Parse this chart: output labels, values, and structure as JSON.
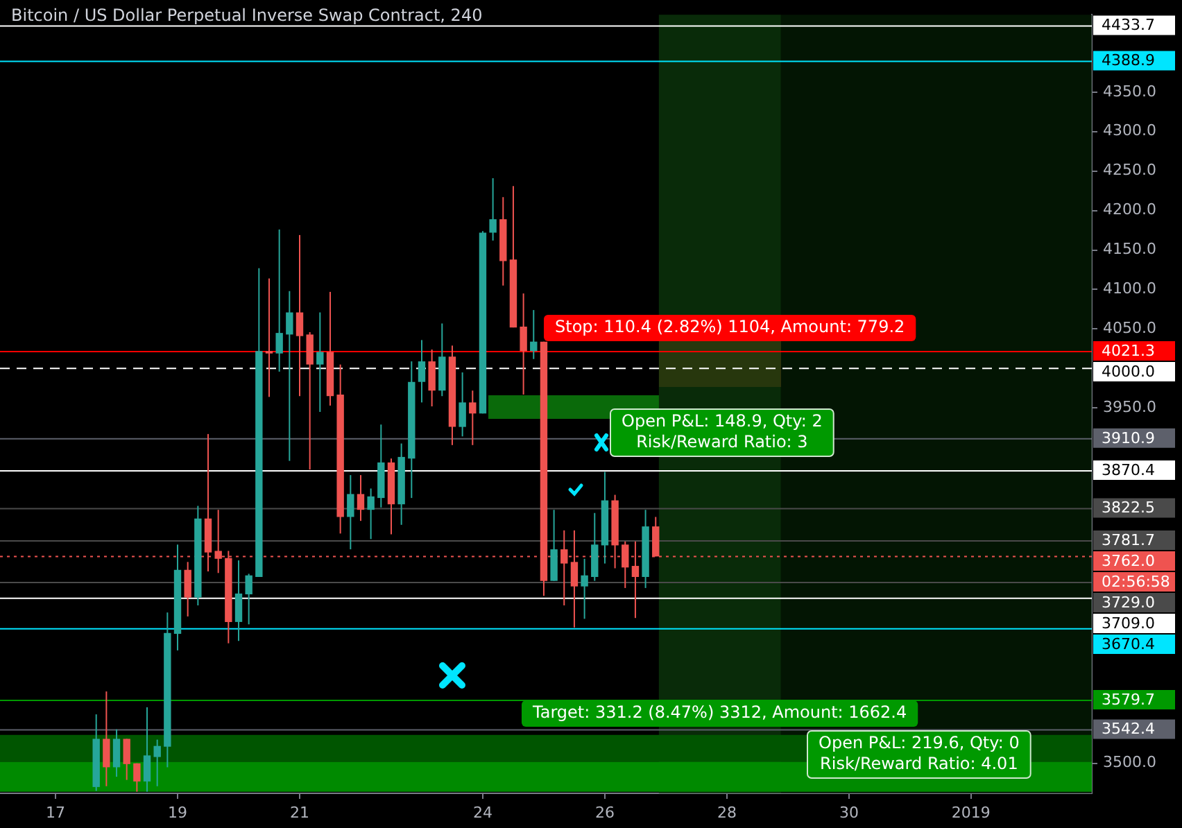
{
  "chart_data": {
    "type": "candlestick",
    "title": "Bitcoin / US Dollar Perpetual Inverse Swap Contract, 240",
    "xlim": [
      "2018-12-16T02:10",
      "2019-01-02T23:30"
    ],
    "ylim": [
      3462,
      4448
    ],
    "xticks": [
      {
        "value": "2018-12-17",
        "label": "17"
      },
      {
        "value": "2018-12-19",
        "label": "19"
      },
      {
        "value": "2018-12-21",
        "label": "21"
      },
      {
        "value": "2018-12-24",
        "label": "24"
      },
      {
        "value": "2018-12-26",
        "label": "26"
      },
      {
        "value": "2018-12-28",
        "label": "28"
      },
      {
        "value": "2018-12-30",
        "label": "30"
      },
      {
        "value": "2019-01-01",
        "label": "2019"
      }
    ],
    "yticks": [
      {
        "value": 3500,
        "label": "3500.0"
      },
      {
        "value": 3950,
        "label": "3950.0"
      },
      {
        "value": 4050,
        "label": "4050.0"
      },
      {
        "value": 4100,
        "label": "4100.0"
      },
      {
        "value": 4150,
        "label": "4150.0"
      },
      {
        "value": 4200,
        "label": "4200.0"
      },
      {
        "value": 4250,
        "label": "4250.0"
      },
      {
        "value": 4300,
        "label": "4300.0"
      },
      {
        "value": 4350,
        "label": "4350.0"
      }
    ],
    "series": [
      {
        "x": [
          "2018-12-17T16:00",
          "2018-12-17T20:00",
          "2018-12-18T00:00",
          "2018-12-18T04:00",
          "2018-12-18T08:00",
          "2018-12-18T12:00",
          "2018-12-18T16:00",
          "2018-12-18T20:00",
          "2018-12-19T00:00",
          "2018-12-19T04:00",
          "2018-12-19T08:00",
          "2018-12-19T12:00",
          "2018-12-19T16:00",
          "2018-12-19T20:00",
          "2018-12-20T00:00",
          "2018-12-20T04:00",
          "2018-12-20T08:00",
          "2018-12-20T12:00",
          "2018-12-20T16:00",
          "2018-12-20T20:00",
          "2018-12-21T00:00",
          "2018-12-21T04:00",
          "2018-12-21T08:00",
          "2018-12-21T12:00",
          "2018-12-21T16:00",
          "2018-12-21T20:00",
          "2018-12-22T00:00",
          "2018-12-22T04:00",
          "2018-12-22T08:00",
          "2018-12-22T12:00",
          "2018-12-22T16:00",
          "2018-12-22T20:00",
          "2018-12-23T00:00",
          "2018-12-23T04:00",
          "2018-12-23T08:00",
          "2018-12-23T12:00",
          "2018-12-23T16:00",
          "2018-12-23T20:00",
          "2018-12-24T00:00",
          "2018-12-24T04:00",
          "2018-12-24T08:00",
          "2018-12-24T12:00",
          "2018-12-24T16:00",
          "2018-12-24T20:00",
          "2018-12-25T00:00",
          "2018-12-25T04:00",
          "2018-12-25T08:00",
          "2018-12-25T12:00",
          "2018-12-25T16:00",
          "2018-12-25T20:00",
          "2018-12-26T00:00",
          "2018-12-26T04:00",
          "2018-12-26T08:00",
          "2018-12-26T12:00",
          "2018-12-26T16:00",
          "2018-12-26T20:00"
        ],
        "ohlc": [
          [
            3470,
            3562,
            3465,
            3531
          ],
          [
            3531,
            3591,
            3471,
            3495
          ],
          [
            3495,
            3543,
            3483,
            3531
          ],
          [
            3531,
            3531,
            3479,
            3499
          ],
          [
            3500,
            3500,
            3464,
            3477
          ],
          [
            3477,
            3571,
            3464,
            3510
          ],
          [
            3508,
            3530,
            3471,
            3522
          ],
          [
            3521,
            3691,
            3495,
            3665
          ],
          [
            3664,
            3777,
            3643,
            3745
          ],
          [
            3745,
            3755,
            3686,
            3710
          ],
          [
            3710,
            3826,
            3700,
            3810
          ],
          [
            3810,
            3917,
            3743,
            3767
          ],
          [
            3769,
            3821,
            3741,
            3759
          ],
          [
            3760,
            3769,
            3652,
            3679
          ],
          [
            3679,
            3757,
            3655,
            3715
          ],
          [
            3714,
            3740,
            3676,
            3738
          ],
          [
            3736,
            4127,
            3736,
            4022
          ],
          [
            4022,
            4114,
            3964,
            4019
          ],
          [
            4019,
            4176,
            3996,
            4045
          ],
          [
            4043,
            4098,
            3883,
            4071
          ],
          [
            4071,
            4169,
            3965,
            4041
          ],
          [
            4043,
            4046,
            3872,
            4005
          ],
          [
            4005,
            4071,
            3945,
            4021
          ],
          [
            4021,
            4097,
            3953,
            3965
          ],
          [
            3967,
            4005,
            3791,
            3812
          ],
          [
            3812,
            3865,
            3771,
            3841
          ],
          [
            3841,
            3865,
            3807,
            3821
          ],
          [
            3821,
            3848,
            3784,
            3838
          ],
          [
            3836,
            3929,
            3824,
            3881
          ],
          [
            3881,
            3886,
            3790,
            3828
          ],
          [
            3828,
            3905,
            3802,
            3888
          ],
          [
            3886,
            4009,
            3836,
            3983
          ],
          [
            3983,
            4036,
            3957,
            4009
          ],
          [
            4009,
            4024,
            3952,
            3972
          ],
          [
            3972,
            4057,
            3965,
            4015
          ],
          [
            4015,
            4029,
            3903,
            3926
          ],
          [
            3926,
            3995,
            3914,
            3957
          ],
          [
            3957,
            3972,
            3903,
            3943
          ],
          [
            3943,
            4174,
            3943,
            4172
          ],
          [
            4172,
            4241,
            4162,
            4189
          ],
          [
            4189,
            4217,
            4105,
            4136
          ],
          [
            4138,
            4231,
            4052,
            4052
          ],
          [
            4053,
            4095,
            3967,
            4022
          ],
          [
            4022,
            4074,
            4012,
            4034
          ],
          [
            4034,
            4034,
            3712,
            3731
          ],
          [
            3731,
            3821,
            3731,
            3771
          ],
          [
            3771,
            3795,
            3700,
            3753
          ],
          [
            3755,
            3795,
            3672,
            3724
          ],
          [
            3724,
            3759,
            3683,
            3738
          ],
          [
            3736,
            3817,
            3731,
            3777
          ],
          [
            3776,
            3869,
            3753,
            3833
          ],
          [
            3833,
            3840,
            3747,
            3776
          ],
          [
            3777,
            3781,
            3722,
            3748
          ],
          [
            3750,
            3781,
            3684,
            3736
          ],
          [
            3736,
            3821,
            3722,
            3800
          ],
          [
            3800,
            3812,
            3762,
            3762
          ]
        ],
        "colors": [
          "#26a69a",
          "#ef5350",
          "#26a69a",
          "#ef5350",
          "#ef5350",
          "#26a69a",
          "#26a69a",
          "#26a69a",
          "#26a69a",
          "#ef5350",
          "#26a69a",
          "#ef5350",
          "#ef5350",
          "#ef5350",
          "#26a69a",
          "#26a69a",
          "#26a69a",
          "#ef5350",
          "#26a69a",
          "#26a69a",
          "#ef5350",
          "#ef5350",
          "#26a69a",
          "#ef5350",
          "#ef5350",
          "#26a69a",
          "#ef5350",
          "#26a69a",
          "#26a69a",
          "#ef5350",
          "#26a69a",
          "#26a69a",
          "#26a69a",
          "#ef5350",
          "#26a69a",
          "#ef5350",
          "#26a69a",
          "#ef5350",
          "#26a69a",
          "#26a69a",
          "#ef5350",
          "#ef5350",
          "#ef5350",
          "#26a69a",
          "#ef5350",
          "#26a69a",
          "#ef5350",
          "#ef5350",
          "#26a69a",
          "#26a69a",
          "#26a69a",
          "#ef5350",
          "#ef5350",
          "#ef5350",
          "#26a69a",
          "#ef5350"
        ]
      }
    ],
    "ref_lines": [
      {
        "axis": "y",
        "value": 4433.7,
        "label": "4433.7",
        "color": "#ffffff"
      },
      {
        "axis": "y",
        "value": 4388.9,
        "label": "4388.9",
        "color": "#00e5ff"
      },
      {
        "axis": "y",
        "value": 4021.3,
        "label": "4021.3",
        "color": "#ff0000"
      },
      {
        "axis": "y",
        "value": 4000,
        "label": "4000.0",
        "color": "#ffffff",
        "line_style": "dashed"
      },
      {
        "axis": "y",
        "value": 3910.9,
        "label": "3910.9",
        "color": "#5d606b"
      },
      {
        "axis": "y",
        "value": 3870.4,
        "label": "3870.4",
        "color": "#ffffff"
      },
      {
        "axis": "y",
        "value": 3822.5,
        "label": "3822.5",
        "color": "#4a4a4a"
      },
      {
        "axis": "y",
        "value": 3781.7,
        "label": "3781.7",
        "color": "#4a4a4a"
      },
      {
        "axis": "y",
        "value": 3762.0,
        "label": "3762.0",
        "color": "#ef5350",
        "line_style": "dotted"
      },
      {
        "axis": "y",
        "value": 3729.0,
        "label": "3729.0",
        "color": "#4a4a4a"
      },
      {
        "axis": "y",
        "value": 3709.0,
        "label": "3709.0",
        "color": "#ffffff"
      },
      {
        "axis": "y",
        "value": 3670.4,
        "label": "3670.4",
        "color": "#00e5ff"
      },
      {
        "axis": "y",
        "value": 3579.7,
        "label": "3579.7",
        "color": "#009900"
      },
      {
        "axis": "y",
        "value": 3542.4,
        "label": "3542.4",
        "color": "#5d606b"
      }
    ],
    "bands": [
      {
        "axis": "x",
        "from": "2018-12-26T21:15",
        "to": "2018-12-28T21:15",
        "color": "#0c3a0c"
      },
      {
        "axis": "x",
        "from": "2018-12-28T21:15",
        "to": "2019-01-02T23:30",
        "color": "#041c04"
      },
      {
        "axis": "y",
        "from": 3536,
        "to": 3502,
        "color": "#005500"
      },
      {
        "axis": "y",
        "from": 3502,
        "to": 3464,
        "color": "#008a00"
      }
    ],
    "annotations": [
      "Stop: 110.4 (2.82%) 1104, Amount: 779.2",
      "Open P&L: 148.9, Qty: 2\nRisk/Reward Ratio: 3",
      "Open P&L: 219.6, Qty: 0\nRisk/Reward Ratio: 4.01",
      "Target: 331.2 (8.47%) 3312, Amount: 1662.4",
      "02:56:58"
    ]
  }
}
